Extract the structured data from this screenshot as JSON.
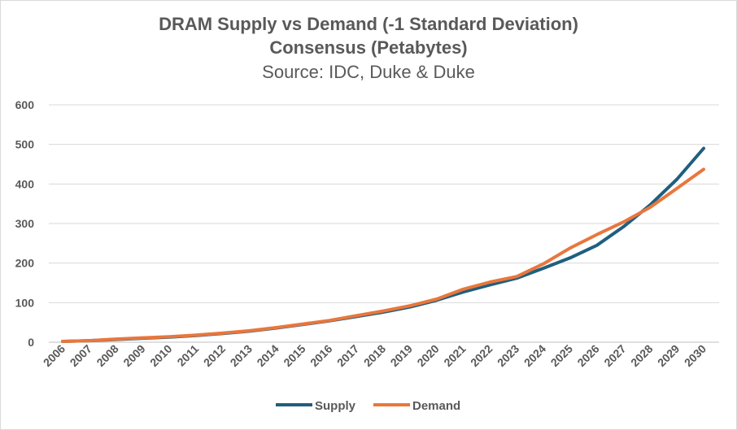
{
  "chart_data": {
    "type": "line",
    "title": "DRAM Supply vs Demand (-1 Standard Deviation)",
    "title_line2": "Consensus (Petabytes)",
    "subtitle": "Source: IDC, Duke & Duke",
    "xlabel": "",
    "ylabel": "",
    "ylim": [
      0,
      600
    ],
    "yticks": [
      0,
      100,
      200,
      300,
      400,
      500,
      600
    ],
    "grid": true,
    "legend_position": "bottom",
    "categories": [
      "2006",
      "2007",
      "2008",
      "2009",
      "2010",
      "2011",
      "2012",
      "2013",
      "2014",
      "2015",
      "2016",
      "2017",
      "2018",
      "2019",
      "2020",
      "2021",
      "2022",
      "2023",
      "2024",
      "2025",
      "2026",
      "2027",
      "2028",
      "2029",
      "2030"
    ],
    "series": [
      {
        "name": "Supply",
        "color": "#1f5f7f",
        "values": [
          2,
          4,
          7,
          10,
          13,
          17,
          22,
          28,
          36,
          45,
          54,
          65,
          76,
          89,
          106,
          127,
          145,
          162,
          187,
          213,
          245,
          292,
          347,
          412,
          490
        ]
      },
      {
        "name": "Demand",
        "color": "#e8773d",
        "values": [
          2,
          4,
          8,
          11,
          14,
          18,
          23,
          29,
          37,
          46,
          55,
          67,
          79,
          92,
          109,
          134,
          152,
          166,
          198,
          238,
          272,
          304,
          341,
          389,
          437
        ]
      }
    ]
  }
}
